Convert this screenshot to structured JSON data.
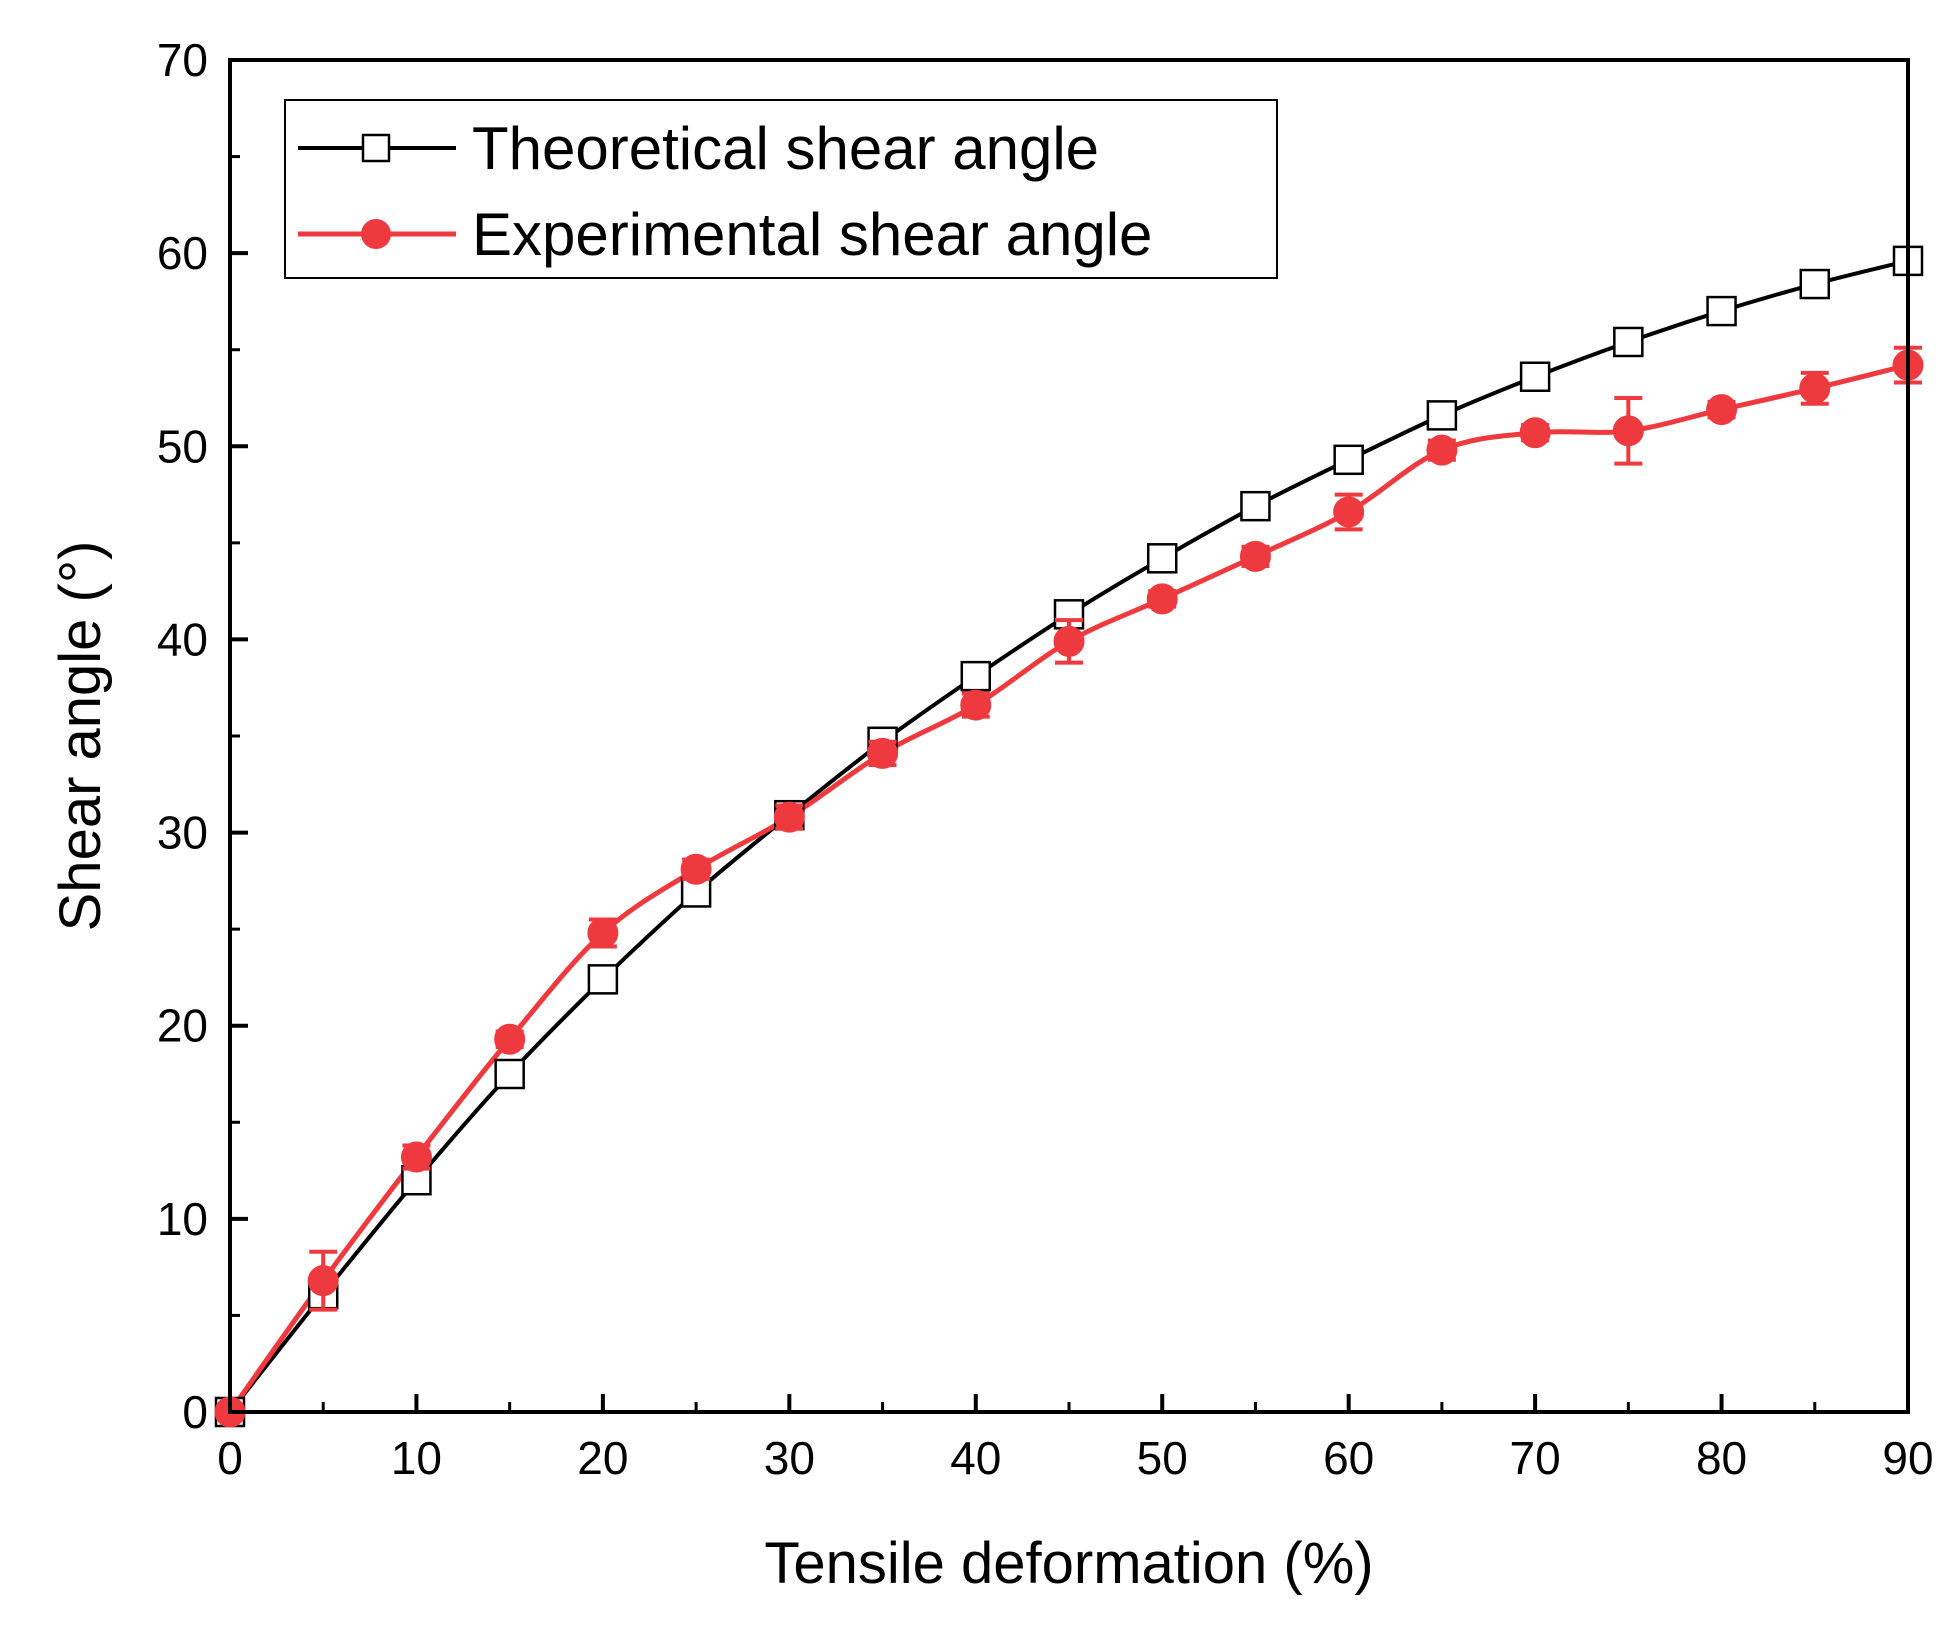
{
  "chart_data": {
    "type": "line",
    "xlabel": "Tensile deformation (%)",
    "ylabel": "Shear angle (°)",
    "xlim": [
      0,
      90
    ],
    "ylim": [
      0,
      70
    ],
    "xticks": [
      0,
      10,
      20,
      30,
      40,
      50,
      60,
      70,
      80,
      90
    ],
    "yticks": [
      0,
      10,
      20,
      30,
      40,
      50,
      60,
      70
    ],
    "grid": false,
    "legend_position": "top-left",
    "series": [
      {
        "name": "Theoretical shear angle",
        "color": "#000000",
        "marker": "open-square",
        "x": [
          0,
          5,
          10,
          15,
          20,
          25,
          30,
          35,
          40,
          45,
          50,
          55,
          60,
          65,
          70,
          75,
          80,
          85,
          90
        ],
        "y": [
          0,
          6.1,
          12.0,
          17.5,
          22.4,
          26.9,
          30.9,
          34.7,
          38.1,
          41.3,
          44.2,
          46.9,
          49.3,
          51.6,
          53.6,
          55.4,
          57.0,
          58.4,
          59.6
        ]
      },
      {
        "name": "Experimental shear angle",
        "color": "#ee3a3f",
        "marker": "filled-circle",
        "x": [
          0,
          5,
          10,
          15,
          20,
          25,
          30,
          35,
          40,
          45,
          50,
          55,
          60,
          65,
          70,
          75,
          80,
          85,
          90
        ],
        "y": [
          0,
          6.8,
          13.2,
          19.3,
          24.8,
          28.1,
          30.8,
          34.1,
          36.6,
          39.9,
          42.1,
          44.3,
          46.6,
          49.8,
          50.7,
          50.8,
          51.9,
          53.0,
          54.2
        ],
        "error": [
          0,
          1.5,
          0.6,
          0.4,
          0.7,
          0.5,
          0.6,
          0.6,
          0.6,
          1.1,
          0.4,
          0.5,
          0.9,
          0.5,
          0.4,
          1.7,
          0.4,
          0.8,
          0.9
        ]
      }
    ]
  }
}
